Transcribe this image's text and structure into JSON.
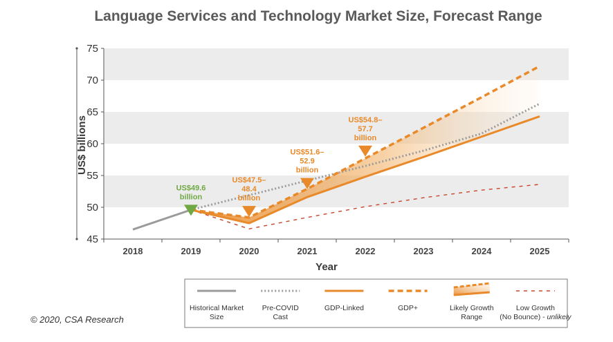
{
  "chart_data": {
    "type": "line",
    "title": "Language Services and Technology Market Size, Forecast Range",
    "xlabel": "Year",
    "ylabel": "US$ billions",
    "ylim": [
      45,
      75
    ],
    "yticks": [
      45,
      50,
      55,
      60,
      65,
      70,
      75
    ],
    "x": [
      2018,
      2019,
      2020,
      2021,
      2022,
      2023,
      2024,
      2025
    ],
    "x_tick_labels": [
      "2018",
      "2019",
      "2020",
      "2021",
      "2022",
      "2023",
      "2024",
      "2025"
    ],
    "grid_bands": true,
    "series": [
      {
        "name": "Historical Market Size",
        "key": "historical",
        "color": "#9b9b9b",
        "style": "solid",
        "points": [
          [
            2018,
            46.5
          ],
          [
            2019,
            49.6
          ]
        ]
      },
      {
        "name": "Pre-COVID Cast",
        "key": "precovid",
        "color": "#9b9b9b",
        "style": "dotted",
        "points": [
          [
            2019,
            49.6
          ],
          [
            2020,
            51.9
          ],
          [
            2021,
            54.2
          ],
          [
            2022,
            56.5
          ],
          [
            2023,
            58.9
          ],
          [
            2024,
            61.6
          ],
          [
            2025,
            66.3
          ]
        ]
      },
      {
        "name": "GDP-Linked",
        "key": "gdplinked",
        "color": "#e8892a",
        "style": "solid",
        "points": [
          [
            2019,
            49.6
          ],
          [
            2020,
            47.5
          ],
          [
            2021,
            51.6
          ],
          [
            2022,
            54.8
          ],
          [
            2023,
            57.9
          ],
          [
            2024,
            61.1
          ],
          [
            2025,
            64.3
          ]
        ]
      },
      {
        "name": "GDP+",
        "key": "gdpplus",
        "color": "#e8892a",
        "style": "dashed",
        "points": [
          [
            2019,
            49.6
          ],
          [
            2020,
            48.4
          ],
          [
            2021,
            52.9
          ],
          [
            2022,
            57.7
          ],
          [
            2023,
            62.5
          ],
          [
            2024,
            67.3
          ],
          [
            2025,
            72.2
          ]
        ]
      },
      {
        "name": "Low Growth (No Bounce) - unlikely",
        "key": "lowgrowth",
        "color": "#c8432b",
        "style": "thin-dashed",
        "points": [
          [
            2019,
            49.6
          ],
          [
            2020,
            46.6
          ],
          [
            2021,
            48.4
          ],
          [
            2022,
            50.1
          ],
          [
            2023,
            51.5
          ],
          [
            2024,
            52.7
          ],
          [
            2025,
            53.6
          ]
        ]
      }
    ],
    "range_band": {
      "name": "Likely Growth Range",
      "lower": "gdplinked",
      "upper": "gdpplus"
    },
    "annotations": [
      {
        "key": "a2019",
        "year": 2019,
        "marker_value": 50.4,
        "color": "#70a844",
        "lines": [
          "US$49.6",
          "billion"
        ]
      },
      {
        "key": "a2020",
        "year": 2020,
        "marker_value": 50.2,
        "color": "#e8892a",
        "lines": [
          "US$47.5–",
          "48.4",
          "billion"
        ]
      },
      {
        "key": "a2021",
        "year": 2021,
        "marker_value": 54.6,
        "color": "#e8892a",
        "lines": [
          "US$51.6–",
          "52.9",
          "billion"
        ]
      },
      {
        "key": "a2022",
        "year": 2022,
        "marker_value": 59.7,
        "color": "#e8892a",
        "lines": [
          "US$54.8–",
          "57.7",
          "billion"
        ]
      }
    ],
    "legend": {
      "placement": "bottom",
      "items": [
        {
          "key": "historical",
          "lines": [
            "Historical Market",
            "Size"
          ]
        },
        {
          "key": "precovid",
          "lines": [
            "Pre-COVID",
            "Cast"
          ]
        },
        {
          "key": "gdplinked",
          "lines": [
            "GDP-Linked"
          ]
        },
        {
          "key": "gdpplus",
          "lines": [
            "GDP+"
          ]
        },
        {
          "key": "range",
          "lines": [
            "Likely Growth",
            "Range"
          ]
        },
        {
          "key": "lowgrowth",
          "lines": [
            "Low Growth",
            "(No Bounce) - "
          ],
          "italic_suffix": "unlikely"
        }
      ]
    }
  },
  "copyright": "© 2020, CSA Research"
}
